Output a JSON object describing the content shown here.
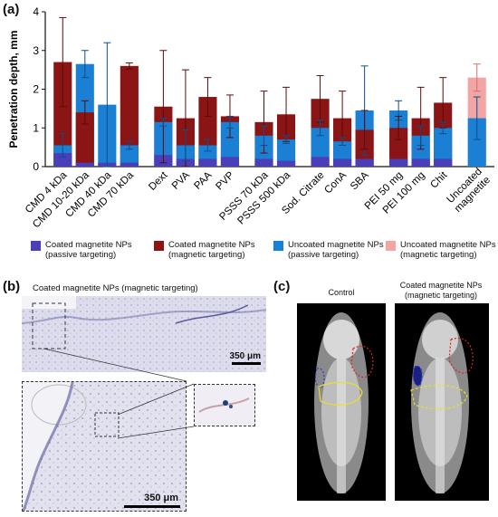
{
  "panels": {
    "a": "(a)",
    "b": "(b)",
    "c": "(c)"
  },
  "chart_data": {
    "type": "bar",
    "ylabel": "Penetration depth, mm",
    "ylim": [
      0,
      4
    ],
    "yticks": [
      "0",
      "1",
      "2",
      "3",
      "4"
    ],
    "categories": [
      "CMD 4 kDa",
      "CMD 10-20 kDa",
      "CMD 40 kDa",
      "CMD 70 kDa",
      "Dext",
      "PVA",
      "PAA",
      "PVP",
      "PSSS 70 kDa",
      "PSSS 500 kDa",
      "Sod. Citrate",
      "ConA",
      "SBA",
      "PEI 50 mg",
      "PEI 100 mg",
      "Chit",
      "Uncoated magnetite"
    ],
    "series": [
      {
        "name": "Coated magnetite NPs (passive targeting)",
        "color": "#4a3fb8",
        "values": [
          0.35,
          0.1,
          0.1,
          0.1,
          0.3,
          0.2,
          0.2,
          0.25,
          0.2,
          0.15,
          0.25,
          0.2,
          0.2,
          0.2,
          0.2,
          0.2,
          null
        ]
      },
      {
        "name": "Coated magnetite NPs (magnetic targeting)",
        "color": "#8b1414",
        "values": [
          2.7,
          1.4,
          null,
          2.6,
          1.55,
          1.25,
          1.8,
          1.3,
          1.15,
          1.35,
          1.75,
          1.25,
          0.95,
          1.0,
          1.25,
          1.65,
          null
        ],
        "errors": [
          1.15,
          0.3,
          null,
          0.08,
          1.45,
          1.25,
          0.5,
          0.55,
          0.8,
          0.7,
          0.6,
          0.7,
          0.5,
          0.3,
          0.8,
          0.65,
          null
        ]
      },
      {
        "name": "Uncoated magnetite NPs (passive targeting)",
        "color": "#1b7fd4",
        "values": [
          0.55,
          2.65,
          1.6,
          0.55,
          1.15,
          0.55,
          0.55,
          1.15,
          0.8,
          0.7,
          1.0,
          0.65,
          1.45,
          1.45,
          0.8,
          1.0,
          1.25
        ],
        "errors": [
          0.3,
          0.35,
          1.6,
          0.1,
          0.1,
          0.4,
          0.15,
          0.15,
          0.25,
          0.1,
          0.2,
          0.1,
          1.15,
          0.25,
          0.25,
          0.15,
          0.55
        ]
      },
      {
        "name": "Uncoated magnetite NPs (magnetic targeting)",
        "color": "#f2a5a5",
        "values": [
          null,
          null,
          null,
          null,
          null,
          null,
          null,
          null,
          null,
          null,
          null,
          null,
          null,
          null,
          null,
          null,
          2.3
        ],
        "errors": [
          null,
          null,
          null,
          null,
          null,
          null,
          null,
          null,
          null,
          null,
          null,
          null,
          null,
          null,
          null,
          null,
          0.35
        ]
      }
    ],
    "legend_placement": "bottom",
    "grid": false
  },
  "legend": [
    {
      "line1": "Coated magnetite NPs",
      "line2": "(passive targeting)",
      "color": "#4a3fb8"
    },
    {
      "line1": "Coated magnetite NPs",
      "line2": "(magnetic targeting)",
      "color": "#8b1414"
    },
    {
      "line1": "Uncoated magnetite NPs",
      "line2": "(passive targeting)",
      "color": "#1b7fd4"
    },
    {
      "line1": "Uncoated magnetite NPs",
      "line2": "(magnetic targeting)",
      "color": "#f2a5a5"
    }
  ],
  "panel_b": {
    "title": "Coated magnetite NPs (magnetic targeting)",
    "scale_top": "350 μm",
    "scale_bottom": "350 μm"
  },
  "panel_c": {
    "control": "Control",
    "treated_line1": "Coated magnetite NPs",
    "treated_line2": "(magnetic targeting)"
  }
}
